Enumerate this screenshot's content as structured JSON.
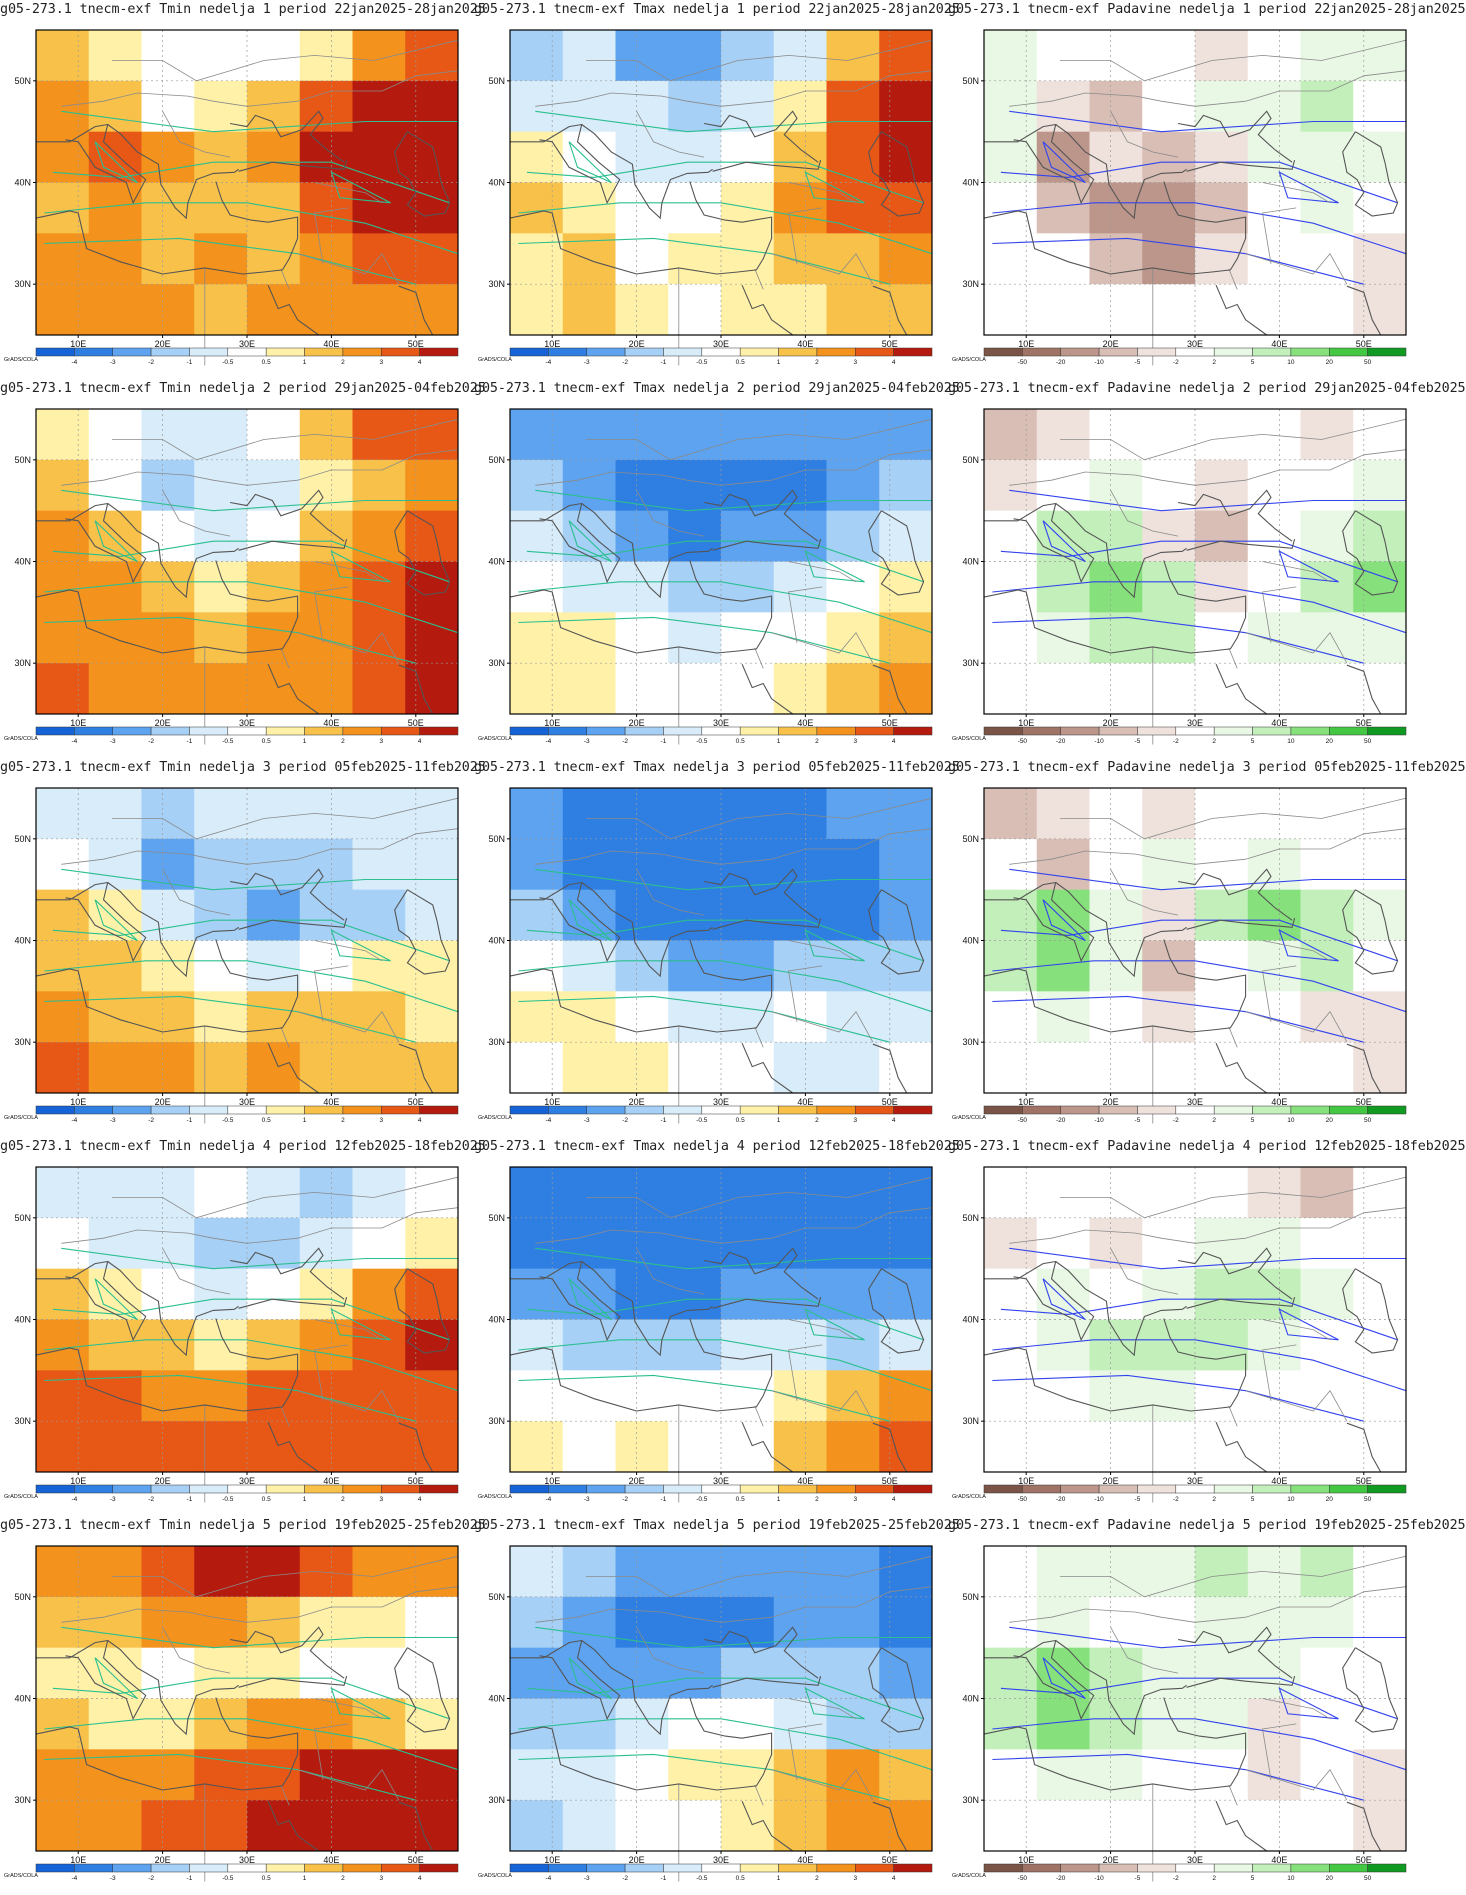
{
  "figure": {
    "grads_label": "GrADS/COLA",
    "lon_ticks": [
      "10E",
      "20E",
      "30E",
      "40E",
      "50E"
    ],
    "lat_ticks": [
      "50N",
      "40N",
      "30N"
    ],
    "temp_colorbar": {
      "labels": [
        "-4",
        "-3",
        "-2",
        "-1",
        "-0.5",
        "0.5",
        "1",
        "2",
        "3",
        "4"
      ],
      "colors": [
        "#1563d6",
        "#2f7fe3",
        "#5da3ef",
        "#a6d0f6",
        "#d8ecfa",
        "#ffffff",
        "#fff2a8",
        "#f8c24a",
        "#f3921c",
        "#e75716",
        "#b41b0e"
      ]
    },
    "precip_colorbar": {
      "labels": [
        "-50",
        "-20",
        "-10",
        "-5",
        "-2",
        "2",
        "5",
        "10",
        "20",
        "50"
      ],
      "colors": [
        "#7a5446",
        "#9f7466",
        "#bc968a",
        "#d8beb4",
        "#efe2dc",
        "#ffffff",
        "#e9f8e4",
        "#c2efba",
        "#86e17c",
        "#44c743",
        "#119a22"
      ]
    },
    "contour_colors": {
      "tmin": "#2bbf8f",
      "tmax": "#2bbf8f",
      "precip": "#3344ee"
    }
  },
  "rows": [
    {
      "period": "22jan2025-28jan2025",
      "titles": [
        "g05-273.1 tnecm-exf Tmin nedelja 1 period 22jan2025-28jan2025",
        "g05-273.1 tnecm-exf Tmax nedelja 1 period 22jan2025-28jan2025",
        "g05-273.1 tnecm-exf Padavine nedelja 1 period 22jan2025-28jan2025"
      ],
      "anomaly_pattern": {
        "tmin": [
          [
            2,
            1,
            0,
            0,
            0,
            1,
            3,
            4
          ],
          [
            3,
            2,
            0,
            1,
            2,
            4,
            5,
            5
          ],
          [
            3,
            4,
            3,
            2,
            3,
            5,
            5,
            5
          ],
          [
            2,
            3,
            2,
            2,
            2,
            4,
            5,
            5
          ],
          [
            3,
            3,
            2,
            3,
            2,
            3,
            4,
            4
          ],
          [
            3,
            3,
            3,
            2,
            3,
            3,
            3,
            3
          ]
        ],
        "tmax": [
          [
            -2,
            -1,
            -3,
            -3,
            -2,
            -1,
            2,
            4
          ],
          [
            -1,
            -1,
            -1,
            -2,
            -1,
            1,
            4,
            5
          ],
          [
            1,
            0,
            -1,
            -1,
            0,
            2,
            4,
            5
          ],
          [
            2,
            1,
            0,
            0,
            1,
            3,
            4,
            4
          ],
          [
            1,
            2,
            0,
            1,
            1,
            2,
            2,
            3
          ],
          [
            1,
            2,
            1,
            0,
            1,
            1,
            2,
            2
          ]
        ],
        "precip": [
          [
            1,
            0,
            0,
            0,
            -1,
            0,
            1,
            1
          ],
          [
            1,
            -1,
            -2,
            0,
            1,
            1,
            2,
            0
          ],
          [
            1,
            -3,
            -1,
            -2,
            -1,
            1,
            1,
            1
          ],
          [
            0,
            -2,
            -3,
            -3,
            -2,
            0,
            1,
            0
          ],
          [
            0,
            0,
            -2,
            -3,
            -1,
            0,
            0,
            -1
          ],
          [
            0,
            0,
            0,
            0,
            0,
            0,
            0,
            -1
          ]
        ]
      }
    },
    {
      "period": "29jan2025-04feb2025",
      "titles": [
        "g05-273.1 tnecm-exf Tmin nedelja 2 period 29jan2025-04feb2025",
        "g05-273.1 tnecm-exf Tmax nedelja 2 period 29jan2025-04feb2025",
        "g05-273.1 tnecm-exf Padavine nedelja 2 period 29jan2025-04feb2025"
      ],
      "anomaly_pattern": {
        "tmin": [
          [
            1,
            0,
            -1,
            -1,
            0,
            2,
            4,
            4
          ],
          [
            2,
            0,
            -2,
            -1,
            -1,
            1,
            2,
            3
          ],
          [
            3,
            2,
            0,
            -1,
            0,
            2,
            3,
            4
          ],
          [
            3,
            3,
            2,
            1,
            2,
            3,
            4,
            5
          ],
          [
            3,
            3,
            3,
            2,
            3,
            3,
            4,
            5
          ],
          [
            4,
            3,
            3,
            3,
            3,
            3,
            4,
            5
          ]
        ],
        "tmax": [
          [
            -3,
            -3,
            -3,
            -3,
            -3,
            -3,
            -3,
            -3
          ],
          [
            -2,
            -3,
            -4,
            -4,
            -4,
            -4,
            -3,
            -2
          ],
          [
            -1,
            -2,
            -3,
            -4,
            -3,
            -3,
            -2,
            -1
          ],
          [
            0,
            -1,
            -1,
            -2,
            -2,
            -1,
            0,
            1
          ],
          [
            1,
            1,
            0,
            -1,
            0,
            0,
            1,
            2
          ],
          [
            1,
            1,
            0,
            0,
            0,
            1,
            2,
            3
          ]
        ],
        "precip": [
          [
            -2,
            -1,
            0,
            0,
            0,
            0,
            -1,
            0
          ],
          [
            -1,
            0,
            1,
            0,
            -1,
            0,
            0,
            1
          ],
          [
            0,
            2,
            2,
            -1,
            -2,
            0,
            1,
            2
          ],
          [
            0,
            2,
            3,
            2,
            -1,
            0,
            2,
            3
          ],
          [
            0,
            1,
            2,
            2,
            0,
            1,
            1,
            1
          ],
          [
            0,
            0,
            0,
            0,
            0,
            0,
            0,
            0
          ]
        ]
      }
    },
    {
      "period": "05feb2025-11feb2025",
      "titles": [
        "g05-273.1 tnecm-exf Tmin nedelja 3 period 05feb2025-11feb2025",
        "g05-273.1 tnecm-exf Tmax nedelja 3 period 05feb2025-11feb2025",
        "g05-273.1 tnecm-exf Padavine nedelja 3 period 05feb2025-11feb2025"
      ],
      "anomaly_pattern": {
        "tmin": [
          [
            -1,
            -1,
            -2,
            -1,
            -1,
            -1,
            -1,
            -1
          ],
          [
            0,
            -1,
            -3,
            -2,
            -2,
            -2,
            -1,
            -1
          ],
          [
            2,
            1,
            -1,
            -2,
            -3,
            -2,
            -2,
            -1
          ],
          [
            2,
            2,
            1,
            0,
            -1,
            0,
            1,
            1
          ],
          [
            3,
            2,
            2,
            1,
            2,
            2,
            2,
            1
          ],
          [
            4,
            3,
            3,
            2,
            3,
            2,
            2,
            2
          ]
        ],
        "tmax": [
          [
            -3,
            -4,
            -4,
            -4,
            -4,
            -4,
            -3,
            -3
          ],
          [
            -3,
            -4,
            -4,
            -4,
            -4,
            -4,
            -4,
            -3
          ],
          [
            -2,
            -3,
            -4,
            -4,
            -4,
            -4,
            -4,
            -3
          ],
          [
            0,
            -1,
            -2,
            -3,
            -3,
            -2,
            -2,
            -2
          ],
          [
            1,
            1,
            0,
            -1,
            -1,
            0,
            -1,
            -1
          ],
          [
            0,
            1,
            1,
            0,
            0,
            -1,
            -1,
            0
          ]
        ],
        "precip": [
          [
            -2,
            -1,
            0,
            -1,
            0,
            0,
            0,
            0
          ],
          [
            0,
            -2,
            0,
            1,
            0,
            1,
            0,
            0
          ],
          [
            2,
            3,
            1,
            -1,
            2,
            3,
            2,
            1
          ],
          [
            2,
            3,
            1,
            -2,
            0,
            1,
            2,
            0
          ],
          [
            0,
            1,
            0,
            -1,
            0,
            0,
            -1,
            -1
          ],
          [
            0,
            0,
            0,
            0,
            0,
            0,
            0,
            -1
          ]
        ]
      }
    },
    {
      "period": "12feb2025-18feb2025",
      "titles": [
        "g05-273.1 tnecm-exf Tmin nedelja 4 period 12feb2025-18feb2025",
        "g05-273.1 tnecm-exf Tmax nedelja 4 period 12feb2025-18feb2025",
        "g05-273.1 tnecm-exf Padavine nedelja 4 period 12feb2025-18feb2025"
      ],
      "anomaly_pattern": {
        "tmin": [
          [
            -1,
            -1,
            -1,
            0,
            -1,
            -2,
            -1,
            0
          ],
          [
            0,
            -1,
            -1,
            -2,
            -2,
            -1,
            0,
            1
          ],
          [
            2,
            1,
            0,
            -1,
            0,
            1,
            3,
            4
          ],
          [
            3,
            2,
            2,
            1,
            2,
            3,
            4,
            5
          ],
          [
            4,
            4,
            3,
            3,
            4,
            4,
            4,
            4
          ],
          [
            4,
            4,
            4,
            4,
            4,
            4,
            4,
            4
          ]
        ],
        "tmax": [
          [
            -4,
            -4,
            -4,
            -4,
            -4,
            -4,
            -4,
            -4
          ],
          [
            -4,
            -4,
            -4,
            -4,
            -4,
            -4,
            -4,
            -4
          ],
          [
            -3,
            -3,
            -4,
            -4,
            -3,
            -3,
            -3,
            -3
          ],
          [
            -1,
            -2,
            -2,
            -2,
            -1,
            -1,
            -2,
            -1
          ],
          [
            0,
            0,
            0,
            0,
            0,
            1,
            2,
            3
          ],
          [
            1,
            0,
            1,
            0,
            0,
            2,
            3,
            4
          ]
        ],
        "precip": [
          [
            0,
            0,
            0,
            0,
            0,
            -1,
            -2,
            0
          ],
          [
            -1,
            0,
            -1,
            0,
            1,
            1,
            0,
            0
          ],
          [
            0,
            1,
            0,
            1,
            2,
            2,
            1,
            0
          ],
          [
            0,
            1,
            2,
            2,
            2,
            1,
            0,
            0
          ],
          [
            0,
            0,
            1,
            1,
            0,
            0,
            0,
            0
          ],
          [
            0,
            0,
            0,
            0,
            0,
            0,
            0,
            0
          ]
        ]
      }
    },
    {
      "period": "19feb2025-25feb2025",
      "titles": [
        "g05-273.1 tnecm-exf Tmin nedelja 5 period 19feb2025-25feb2025",
        "g05-273.1 tnecm-exf Tmax nedelja 5 period 19feb2025-25feb2025",
        "g05-273.1 tnecm-exf Padavine nedelja 5 period 19feb2025-25feb2025"
      ],
      "anomaly_pattern": {
        "tmin": [
          [
            3,
            3,
            4,
            5,
            5,
            4,
            3,
            3
          ],
          [
            2,
            2,
            3,
            3,
            2,
            1,
            1,
            0
          ],
          [
            1,
            1,
            0,
            1,
            1,
            0,
            0,
            0
          ],
          [
            2,
            1,
            1,
            2,
            3,
            3,
            2,
            1
          ],
          [
            3,
            3,
            3,
            4,
            4,
            5,
            5,
            5
          ],
          [
            3,
            3,
            4,
            4,
            5,
            5,
            5,
            5
          ]
        ],
        "tmax": [
          [
            -1,
            -2,
            -3,
            -3,
            -3,
            -3,
            -3,
            -4
          ],
          [
            -2,
            -3,
            -4,
            -4,
            -4,
            -3,
            -3,
            -4
          ],
          [
            -3,
            -3,
            -3,
            -3,
            -2,
            -2,
            -2,
            -3
          ],
          [
            -2,
            -2,
            -1,
            0,
            0,
            -1,
            -2,
            -2
          ],
          [
            -1,
            -1,
            0,
            1,
            1,
            2,
            3,
            2
          ],
          [
            -2,
            -1,
            0,
            0,
            1,
            2,
            3,
            3
          ]
        ],
        "precip": [
          [
            0,
            1,
            1,
            1,
            2,
            1,
            2,
            0
          ],
          [
            0,
            1,
            0,
            0,
            1,
            1,
            1,
            0
          ],
          [
            2,
            3,
            2,
            1,
            1,
            1,
            0,
            0
          ],
          [
            2,
            3,
            2,
            1,
            1,
            -1,
            0,
            0
          ],
          [
            0,
            1,
            1,
            0,
            0,
            -1,
            0,
            -1
          ],
          [
            0,
            0,
            0,
            0,
            0,
            0,
            0,
            -1
          ]
        ]
      }
    }
  ]
}
